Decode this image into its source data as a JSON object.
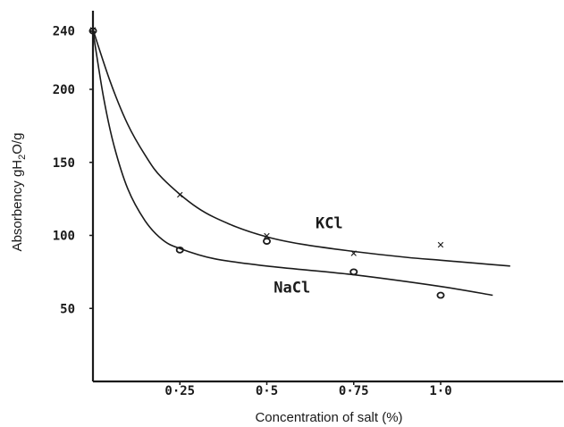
{
  "chart_data": {
    "type": "line",
    "title": "",
    "xlabel": "Concentration of salt (%)",
    "ylabel": "Absorbency gH2O/g",
    "ylabel_parts": {
      "pre": "Absorbency gH",
      "sub": "2",
      "post": "O/g"
    },
    "xlim": [
      0,
      1.3
    ],
    "ylim": [
      0,
      245
    ],
    "x_ticks": [
      {
        "value": 0.25,
        "label": "0·25"
      },
      {
        "value": 0.5,
        "label": "0·5"
      },
      {
        "value": 0.75,
        "label": "0·75"
      },
      {
        "value": 1.0,
        "label": "1·0"
      }
    ],
    "y_ticks": [
      {
        "value": 240,
        "label": "240"
      },
      {
        "value": 200,
        "label": "200"
      },
      {
        "value": 150,
        "label": "150"
      },
      {
        "value": 100,
        "label": "100"
      },
      {
        "value": 50,
        "label": "50"
      }
    ],
    "grid": false,
    "legend": "none",
    "series": [
      {
        "name": "KCl",
        "marker": "x",
        "points": [
          {
            "x": 0,
            "y": 241
          },
          {
            "x": 0.25,
            "y": 128
          },
          {
            "x": 0.5,
            "y": 100
          },
          {
            "x": 0.75,
            "y": 88
          },
          {
            "x": 1.0,
            "y": 94
          }
        ],
        "curve": [
          {
            "x": 0,
            "y": 241
          },
          {
            "x": 0.05,
            "y": 205
          },
          {
            "x": 0.1,
            "y": 176
          },
          {
            "x": 0.15,
            "y": 155
          },
          {
            "x": 0.2,
            "y": 139
          },
          {
            "x": 0.3,
            "y": 119
          },
          {
            "x": 0.4,
            "y": 107
          },
          {
            "x": 0.5,
            "y": 99
          },
          {
            "x": 0.6,
            "y": 94
          },
          {
            "x": 0.75,
            "y": 89
          },
          {
            "x": 0.9,
            "y": 85
          },
          {
            "x": 1.0,
            "y": 83
          },
          {
            "x": 1.1,
            "y": 81
          },
          {
            "x": 1.2,
            "y": 79
          }
        ]
      },
      {
        "name": "NaCl",
        "marker": "o",
        "points": [
          {
            "x": 0,
            "y": 240
          },
          {
            "x": 0.25,
            "y": 90
          },
          {
            "x": 0.5,
            "y": 96
          },
          {
            "x": 0.75,
            "y": 75
          },
          {
            "x": 1.0,
            "y": 59
          }
        ],
        "curve": [
          {
            "x": 0,
            "y": 240
          },
          {
            "x": 0.03,
            "y": 195
          },
          {
            "x": 0.06,
            "y": 162
          },
          {
            "x": 0.1,
            "y": 132
          },
          {
            "x": 0.15,
            "y": 110
          },
          {
            "x": 0.2,
            "y": 97
          },
          {
            "x": 0.25,
            "y": 91
          },
          {
            "x": 0.35,
            "y": 84
          },
          {
            "x": 0.5,
            "y": 79
          },
          {
            "x": 0.75,
            "y": 73
          },
          {
            "x": 1.0,
            "y": 65
          },
          {
            "x": 1.15,
            "y": 59
          }
        ]
      }
    ],
    "annotations": [
      {
        "text": "KCl",
        "series": "KCl",
        "x": 0.64,
        "y": 105
      },
      {
        "text": "NaCl",
        "series": "NaCl",
        "x": 0.52,
        "y": 61
      }
    ]
  }
}
